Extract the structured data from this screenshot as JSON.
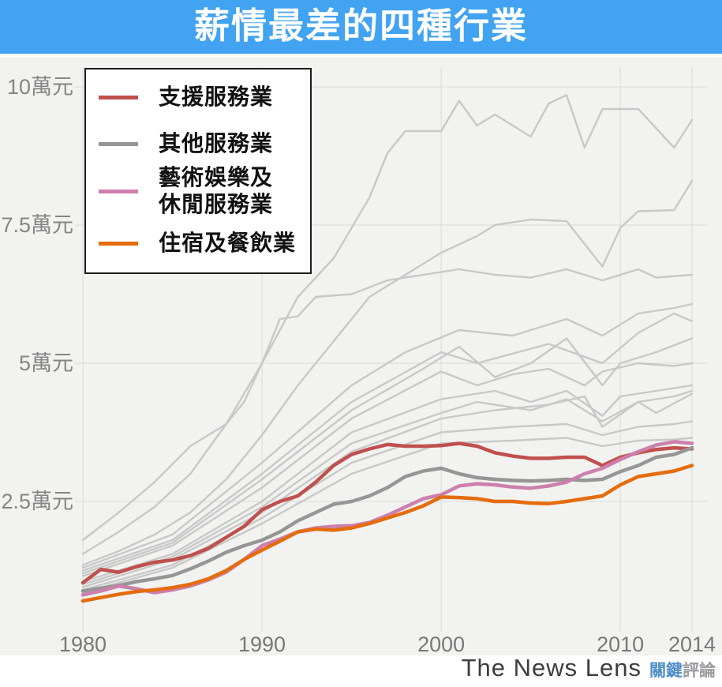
{
  "header": {
    "title": "薪情最差的四種行業",
    "background_color": "#41A3F1"
  },
  "footer": {
    "brand_en": "The News Lens",
    "brand_zh_primary": "關鍵",
    "brand_zh_secondary": "評論"
  },
  "legend": {
    "items": [
      {
        "label": "支援服務業",
        "color": "#C0504D"
      },
      {
        "label": "其他服務業",
        "color": "#969696"
      },
      {
        "label": "藝術娛樂及\n休閒服務業",
        "color": "#CC7FAC"
      },
      {
        "label": "住宿及餐飲業",
        "color": "#E56C0C"
      }
    ]
  },
  "chart_data": {
    "type": "line",
    "title": "薪情最差的四種行業",
    "unit": "萬元",
    "xlim": [
      1980,
      2014
    ],
    "ylim": [
      0,
      10.5
    ],
    "grid": true,
    "legend_position": "top-left",
    "background_color_lines": "#C8C8C8",
    "x_ticks": [
      {
        "value": 1980,
        "label": "1980"
      },
      {
        "value": 1990,
        "label": "1990"
      },
      {
        "value": 2000,
        "label": "2000"
      },
      {
        "value": 2010,
        "label": "2010"
      },
      {
        "value": 2014,
        "label": "2014"
      }
    ],
    "y_ticks": [
      {
        "value": 2.5,
        "label": "2.5萬元"
      },
      {
        "value": 5,
        "label": "5萬元"
      },
      {
        "value": 7.5,
        "label": "7.5萬元"
      },
      {
        "value": 10,
        "label": "10萬元"
      }
    ],
    "years_full": [
      1980,
      1981,
      1982,
      1983,
      1984,
      1985,
      1986,
      1987,
      1988,
      1989,
      1990,
      1991,
      1992,
      1993,
      1994,
      1995,
      1996,
      1997,
      1998,
      1999,
      2000,
      2001,
      2002,
      2003,
      2004,
      2005,
      2006,
      2007,
      2008,
      2009,
      2010,
      2011,
      2012,
      2013,
      2014
    ],
    "highlighted_series": [
      {
        "name": "支援服務業",
        "color": "#C0504D",
        "values": [
          1.03,
          1.27,
          1.22,
          1.32,
          1.4,
          1.44,
          1.52,
          1.65,
          1.85,
          2.05,
          2.35,
          2.5,
          2.6,
          2.85,
          3.15,
          3.35,
          3.45,
          3.53,
          3.5,
          3.5,
          3.51,
          3.55,
          3.5,
          3.38,
          3.32,
          3.28,
          3.28,
          3.3,
          3.3,
          3.15,
          3.3,
          3.38,
          3.44,
          3.47,
          3.45
        ]
      },
      {
        "name": "其他服務業",
        "color": "#969696",
        "values": [
          0.88,
          0.93,
          0.98,
          1.05,
          1.1,
          1.16,
          1.28,
          1.42,
          1.58,
          1.7,
          1.8,
          1.95,
          2.15,
          2.3,
          2.45,
          2.5,
          2.6,
          2.75,
          2.95,
          3.05,
          3.1,
          3.0,
          2.93,
          2.9,
          2.88,
          2.87,
          2.88,
          2.9,
          2.88,
          2.9,
          3.04,
          3.15,
          3.3,
          3.35,
          3.47
        ]
      },
      {
        "name": "藝術娛樂及休閒服務業",
        "color": "#CC7FAC",
        "values": [
          0.81,
          0.88,
          0.97,
          0.92,
          0.85,
          0.9,
          0.97,
          1.08,
          1.22,
          1.45,
          1.7,
          1.82,
          1.95,
          2.02,
          2.05,
          2.06,
          2.12,
          2.25,
          2.4,
          2.55,
          2.62,
          2.78,
          2.82,
          2.8,
          2.76,
          2.74,
          2.78,
          2.85,
          3.0,
          3.1,
          3.26,
          3.4,
          3.52,
          3.58,
          3.55
        ]
      },
      {
        "name": "住宿及餐飲業",
        "color": "#E56C0C",
        "values": [
          0.7,
          0.76,
          0.82,
          0.87,
          0.9,
          0.94,
          1.0,
          1.1,
          1.25,
          1.45,
          1.62,
          1.78,
          1.95,
          2.0,
          1.98,
          2.02,
          2.1,
          2.2,
          2.3,
          2.42,
          2.58,
          2.57,
          2.55,
          2.5,
          2.5,
          2.47,
          2.46,
          2.5,
          2.55,
          2.6,
          2.8,
          2.95,
          3.0,
          3.05,
          3.15
        ]
      }
    ],
    "background_series": [
      {
        "name": "gray-series-1",
        "years": [
          1980,
          1982,
          1984,
          1986,
          1988,
          1990,
          1992,
          1994,
          1996,
          1997,
          1998,
          2000,
          2001,
          2002,
          2003,
          2005,
          2006,
          2007,
          2008,
          2009,
          2011,
          2013,
          2014
        ],
        "values": [
          1.55,
          1.95,
          2.4,
          3.0,
          3.9,
          5.0,
          6.2,
          6.9,
          8.0,
          8.8,
          9.2,
          9.2,
          9.75,
          9.3,
          9.5,
          9.1,
          9.7,
          9.85,
          8.9,
          9.6,
          9.6,
          8.9,
          9.4
        ]
      },
      {
        "name": "gray-series-2",
        "years": [
          1980,
          1982,
          1984,
          1986,
          1988,
          1990,
          1992,
          1994,
          1996,
          1998,
          2000,
          2002,
          2003,
          2005,
          2007,
          2009,
          2010,
          2011,
          2013,
          2014
        ],
        "values": [
          1.35,
          1.6,
          1.9,
          2.3,
          2.9,
          3.7,
          4.6,
          5.4,
          6.2,
          6.6,
          7.0,
          7.3,
          7.5,
          7.6,
          7.57,
          6.75,
          7.45,
          7.75,
          7.77,
          8.3
        ]
      },
      {
        "name": "gray-series-3",
        "years": [
          1980,
          1982,
          1984,
          1986,
          1988,
          1989,
          1990,
          1991,
          1992,
          1993,
          1995,
          1997,
          1999,
          2001,
          2003,
          2005,
          2007,
          2009,
          2011,
          2012,
          2014
        ],
        "values": [
          1.8,
          2.3,
          2.85,
          3.5,
          3.9,
          4.3,
          5.0,
          5.8,
          5.85,
          6.2,
          6.25,
          6.5,
          6.6,
          6.7,
          6.6,
          6.55,
          6.7,
          6.5,
          6.7,
          6.55,
          6.6
        ]
      },
      {
        "name": "gray-series-4",
        "years": [
          1980,
          1985,
          1990,
          1995,
          1998,
          2001,
          2004,
          2007,
          2009,
          2011,
          2013,
          2014
        ],
        "values": [
          1.3,
          1.9,
          3.2,
          4.6,
          5.2,
          5.6,
          5.5,
          5.8,
          5.5,
          5.9,
          6.0,
          6.07
        ]
      },
      {
        "name": "gray-series-5",
        "years": [
          1980,
          1985,
          1990,
          1995,
          2000,
          2002,
          2006,
          2009,
          2011,
          2013,
          2014
        ],
        "values": [
          1.25,
          1.8,
          3.0,
          4.3,
          5.2,
          5.0,
          5.35,
          5.0,
          5.55,
          5.9,
          5.76
        ]
      },
      {
        "name": "gray-series-6",
        "years": [
          1980,
          1985,
          1990,
          1995,
          1999,
          2001,
          2003,
          2005,
          2007,
          2009,
          2010,
          2012,
          2014
        ],
        "values": [
          1.2,
          1.75,
          2.9,
          4.15,
          4.9,
          5.3,
          4.75,
          5.0,
          5.45,
          4.6,
          5.0,
          5.2,
          5.45
        ]
      },
      {
        "name": "gray-series-7",
        "years": [
          1980,
          1985,
          1990,
          1995,
          2000,
          2002,
          2004,
          2006,
          2008,
          2009,
          2011,
          2013,
          2014
        ],
        "values": [
          1.15,
          1.7,
          2.75,
          4.0,
          4.85,
          4.6,
          4.8,
          4.9,
          4.6,
          4.85,
          5.0,
          4.95,
          5.0
        ]
      },
      {
        "name": "gray-series-8",
        "years": [
          1980,
          1985,
          1990,
          1995,
          2000,
          2003,
          2005,
          2007,
          2009,
          2010,
          2012,
          2014
        ],
        "values": [
          1.05,
          1.55,
          2.5,
          3.75,
          4.35,
          4.5,
          4.3,
          4.5,
          4.05,
          4.4,
          4.5,
          4.6
        ]
      },
      {
        "name": "gray-series-9",
        "years": [
          1980,
          1985,
          1990,
          1995,
          2000,
          2002,
          2005,
          2007,
          2009,
          2011,
          2013,
          2014
        ],
        "values": [
          1.0,
          1.5,
          2.4,
          3.55,
          4.1,
          4.3,
          4.15,
          4.35,
          3.95,
          4.3,
          4.4,
          4.5
        ]
      },
      {
        "name": "gray-series-10",
        "years": [
          1980,
          1985,
          1990,
          1995,
          2000,
          2003,
          2006,
          2008,
          2009,
          2011,
          2012,
          2014
        ],
        "values": [
          0.95,
          1.45,
          2.3,
          3.4,
          4.0,
          4.15,
          4.25,
          4.4,
          3.85,
          4.3,
          4.1,
          4.45
        ]
      },
      {
        "name": "gray-series-11",
        "years": [
          1980,
          1985,
          1990,
          1995,
          2000,
          2004,
          2007,
          2009,
          2011,
          2013,
          2014
        ],
        "values": [
          0.9,
          1.35,
          2.2,
          3.2,
          3.75,
          3.85,
          3.9,
          3.7,
          3.85,
          3.9,
          3.95
        ]
      },
      {
        "name": "gray-series-12",
        "years": [
          1980,
          1985,
          1990,
          1995,
          2000,
          2004,
          2007,
          2009,
          2011,
          2013,
          2014
        ],
        "values": [
          0.85,
          1.3,
          2.1,
          3.0,
          3.55,
          3.6,
          3.65,
          3.5,
          3.6,
          3.62,
          3.65
        ]
      }
    ]
  }
}
